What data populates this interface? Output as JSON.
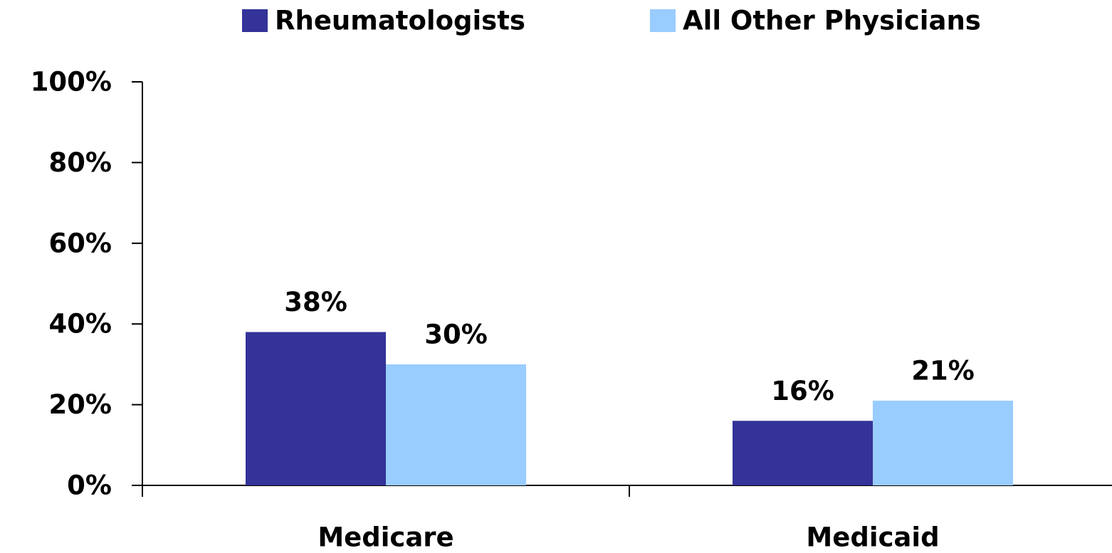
{
  "chart_data": {
    "type": "bar",
    "categories": [
      "Medicare",
      "Medicaid"
    ],
    "series": [
      {
        "name": "Rheumatologists",
        "color": "#333399",
        "values": [
          38,
          16
        ],
        "value_labels": [
          "38%",
          "16%"
        ]
      },
      {
        "name": "All Other Physicians",
        "color": "#99ccff",
        "values": [
          30,
          21
        ],
        "value_labels": [
          "30%",
          "21%"
        ]
      }
    ],
    "ylim": [
      0,
      100
    ],
    "yticks": [
      {
        "value": 0,
        "label": "0%"
      },
      {
        "value": 20,
        "label": "20%"
      },
      {
        "value": 40,
        "label": "40%"
      },
      {
        "value": 60,
        "label": "60%"
      },
      {
        "value": 80,
        "label": "80%"
      },
      {
        "value": 100,
        "label": "100%"
      }
    ],
    "legend": "top"
  }
}
